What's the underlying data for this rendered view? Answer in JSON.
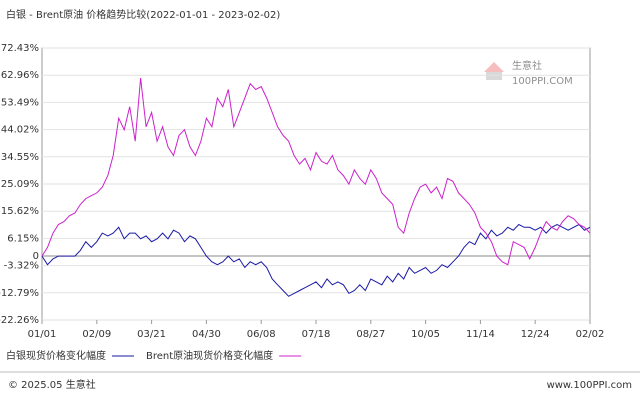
{
  "chart_data": {
    "type": "line",
    "title": "白银 - Brent原油 价格趋势比较(2022-01-01 - 2023-02-02)",
    "categories": [
      "01/01",
      null,
      null,
      null,
      null,
      null,
      null,
      null,
      null,
      null,
      "02/09",
      null,
      null,
      null,
      null,
      null,
      null,
      null,
      null,
      null,
      "03/21",
      null,
      null,
      null,
      null,
      null,
      null,
      null,
      null,
      null,
      "04/30",
      null,
      null,
      null,
      null,
      null,
      null,
      null,
      null,
      null,
      "06/08",
      null,
      null,
      null,
      null,
      null,
      null,
      null,
      null,
      null,
      "07/18",
      null,
      null,
      null,
      null,
      null,
      null,
      null,
      null,
      null,
      "08/27",
      null,
      null,
      null,
      null,
      null,
      null,
      null,
      null,
      null,
      "10/05",
      null,
      null,
      null,
      null,
      null,
      null,
      null,
      null,
      null,
      "11/14",
      null,
      null,
      null,
      null,
      null,
      null,
      null,
      null,
      null,
      "12/24",
      null,
      null,
      null,
      null,
      null,
      null,
      null,
      null,
      null,
      "02/02"
    ],
    "series": [
      {
        "name": "白银现货价格变化幅度",
        "color": "#1a1aa6",
        "values": [
          0,
          -3,
          -1,
          0,
          0,
          0,
          0,
          2,
          5,
          3,
          5,
          8,
          7,
          8,
          10,
          6,
          8,
          8,
          6,
          7,
          5,
          6,
          8,
          6,
          9,
          8,
          5,
          7,
          6,
          3,
          0,
          -2,
          -3,
          -2,
          0,
          -2,
          -1,
          -4,
          -2,
          -3,
          -2,
          -4,
          -8,
          -10,
          -12,
          -14,
          -13,
          -12,
          -11,
          -10,
          -9,
          -11,
          -8,
          -10,
          -9,
          -10,
          -13,
          -12,
          -10,
          -12,
          -8,
          -9,
          -10,
          -7,
          -9,
          -6,
          -8,
          -4,
          -6,
          -5,
          -4,
          -6,
          -5,
          -3,
          -4,
          -2,
          0,
          3,
          5,
          4,
          8,
          6,
          9,
          7,
          8,
          10,
          9,
          11,
          10,
          10,
          9,
          10,
          8,
          10,
          11,
          10,
          9,
          10,
          11,
          9,
          10
        ]
      },
      {
        "name": "Brent原油现货价格变化幅度",
        "color": "#cc22cc",
        "values": [
          0,
          3,
          8,
          11,
          12,
          14,
          15,
          18,
          20,
          21,
          22,
          24,
          28,
          35,
          48,
          44,
          52,
          40,
          62,
          45,
          50,
          40,
          45,
          38,
          35,
          42,
          44,
          38,
          35,
          40,
          48,
          45,
          55,
          52,
          58,
          45,
          50,
          55,
          60,
          58,
          59,
          55,
          50,
          45,
          42,
          40,
          35,
          32,
          34,
          30,
          36,
          33,
          32,
          35,
          30,
          28,
          25,
          30,
          27,
          25,
          30,
          27,
          22,
          20,
          18,
          10,
          8,
          15,
          20,
          24,
          25,
          22,
          24,
          20,
          27,
          26,
          22,
          20,
          18,
          15,
          10,
          8,
          5,
          0,
          -2,
          -3,
          5,
          4,
          3,
          -1,
          3,
          8,
          12,
          10,
          9,
          12,
          14,
          13,
          11,
          10,
          8
        ]
      }
    ],
    "ylim": [
      -22.26,
      72.43
    ],
    "yticks": [
      {
        "value": 72.43,
        "label": "72.43%"
      },
      {
        "value": 62.96,
        "label": "62.96%"
      },
      {
        "value": 53.49,
        "label": "53.49%"
      },
      {
        "value": 44.02,
        "label": "44.02%"
      },
      {
        "value": 34.55,
        "label": "34.55%"
      },
      {
        "value": 25.09,
        "label": "25.09%"
      },
      {
        "value": 15.62,
        "label": "15.62%"
      },
      {
        "value": 6.15,
        "label": "6.15%"
      },
      0,
      {
        "value": -3.32,
        "label": "-3.32%"
      },
      {
        "value": -12.79,
        "label": "-12.79%"
      },
      {
        "value": -22.26,
        "label": "-22.26%"
      }
    ],
    "grid": true,
    "watermark": {
      "name": "生意社",
      "site": "100PPI.COM"
    },
    "footer": {
      "copyright": "© 2025.05 生意社",
      "url": "www.100PPI.com"
    }
  }
}
